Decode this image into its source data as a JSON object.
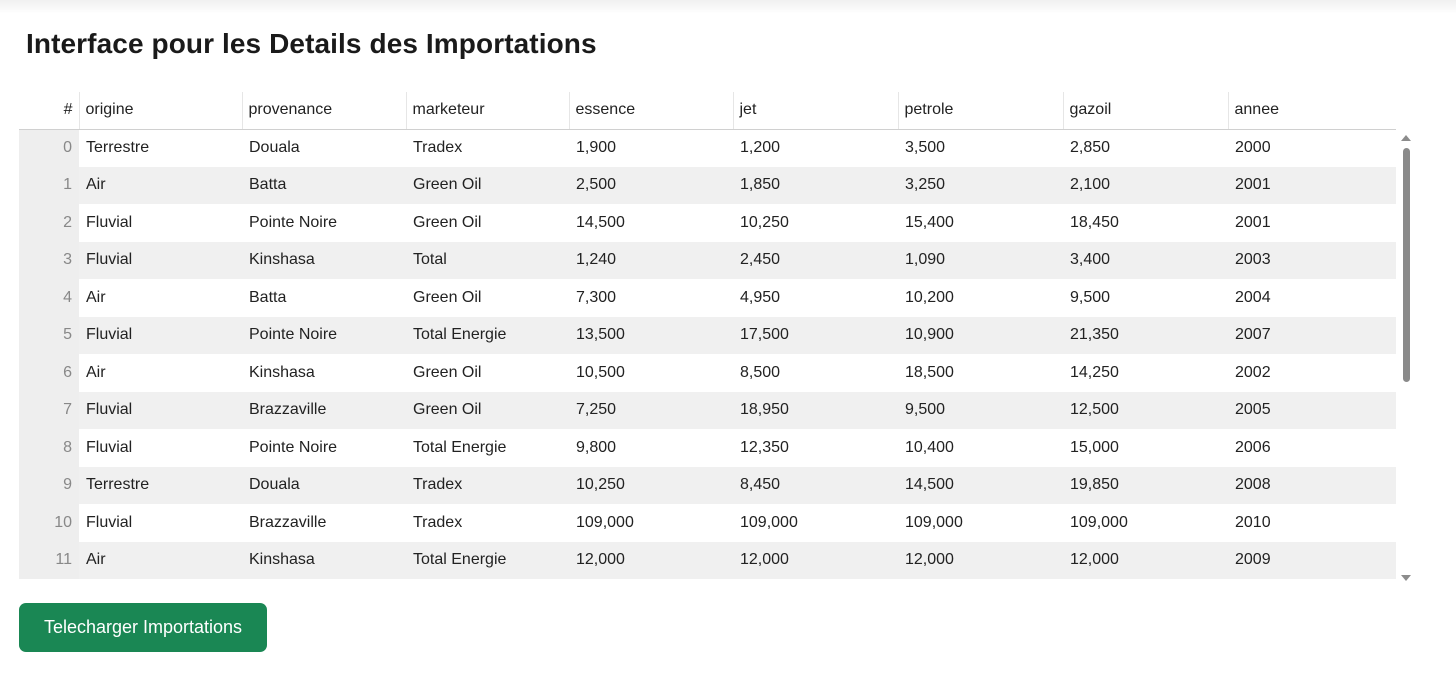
{
  "page": {
    "title": "Interface pour les Details des Importations",
    "download_label": "Telecharger Importations"
  },
  "table": {
    "index_header": "#",
    "columns": [
      "origine",
      "provenance",
      "marketeur",
      "essence",
      "jet",
      "petrole",
      "gazoil",
      "annee"
    ],
    "rows": [
      [
        "0",
        "Terrestre",
        "Douala",
        "Tradex",
        "1,900",
        "1,200",
        "3,500",
        "2,850",
        "2000"
      ],
      [
        "1",
        "Air",
        "Batta",
        "Green Oil",
        "2,500",
        "1,850",
        "3,250",
        "2,100",
        "2001"
      ],
      [
        "2",
        "Fluvial",
        "Pointe Noire",
        "Green Oil",
        "14,500",
        "10,250",
        "15,400",
        "18,450",
        "2001"
      ],
      [
        "3",
        "Fluvial",
        "Kinshasa",
        "Total",
        "1,240",
        "2,450",
        "1,090",
        "3,400",
        "2003"
      ],
      [
        "4",
        "Air",
        "Batta",
        "Green Oil",
        "7,300",
        "4,950",
        "10,200",
        "9,500",
        "2004"
      ],
      [
        "5",
        "Fluvial",
        "Pointe Noire",
        "Total Energie",
        "13,500",
        "17,500",
        "10,900",
        "21,350",
        "2007"
      ],
      [
        "6",
        "Air",
        "Kinshasa",
        "Green Oil",
        "10,500",
        "8,500",
        "18,500",
        "14,250",
        "2002"
      ],
      [
        "7",
        "Fluvial",
        "Brazzaville",
        "Green Oil",
        "7,250",
        "18,950",
        "9,500",
        "12,500",
        "2005"
      ],
      [
        "8",
        "Fluvial",
        "Pointe Noire",
        "Total Energie",
        "9,800",
        "12,350",
        "10,400",
        "15,000",
        "2006"
      ],
      [
        "9",
        "Terrestre",
        "Douala",
        "Tradex",
        "10,250",
        "8,450",
        "14,500",
        "19,850",
        "2008"
      ],
      [
        "10",
        "Fluvial",
        "Brazzaville",
        "Tradex",
        "109,000",
        "109,000",
        "109,000",
        "109,000",
        "2010"
      ],
      [
        "11",
        "Air",
        "Kinshasa",
        "Total Energie",
        "12,000",
        "12,000",
        "12,000",
        "12,000",
        "2009"
      ]
    ]
  },
  "colors": {
    "accent": "#1a8754",
    "row_alt": "#f0f0f0",
    "scroll_thumb": "#8a8a8a"
  }
}
